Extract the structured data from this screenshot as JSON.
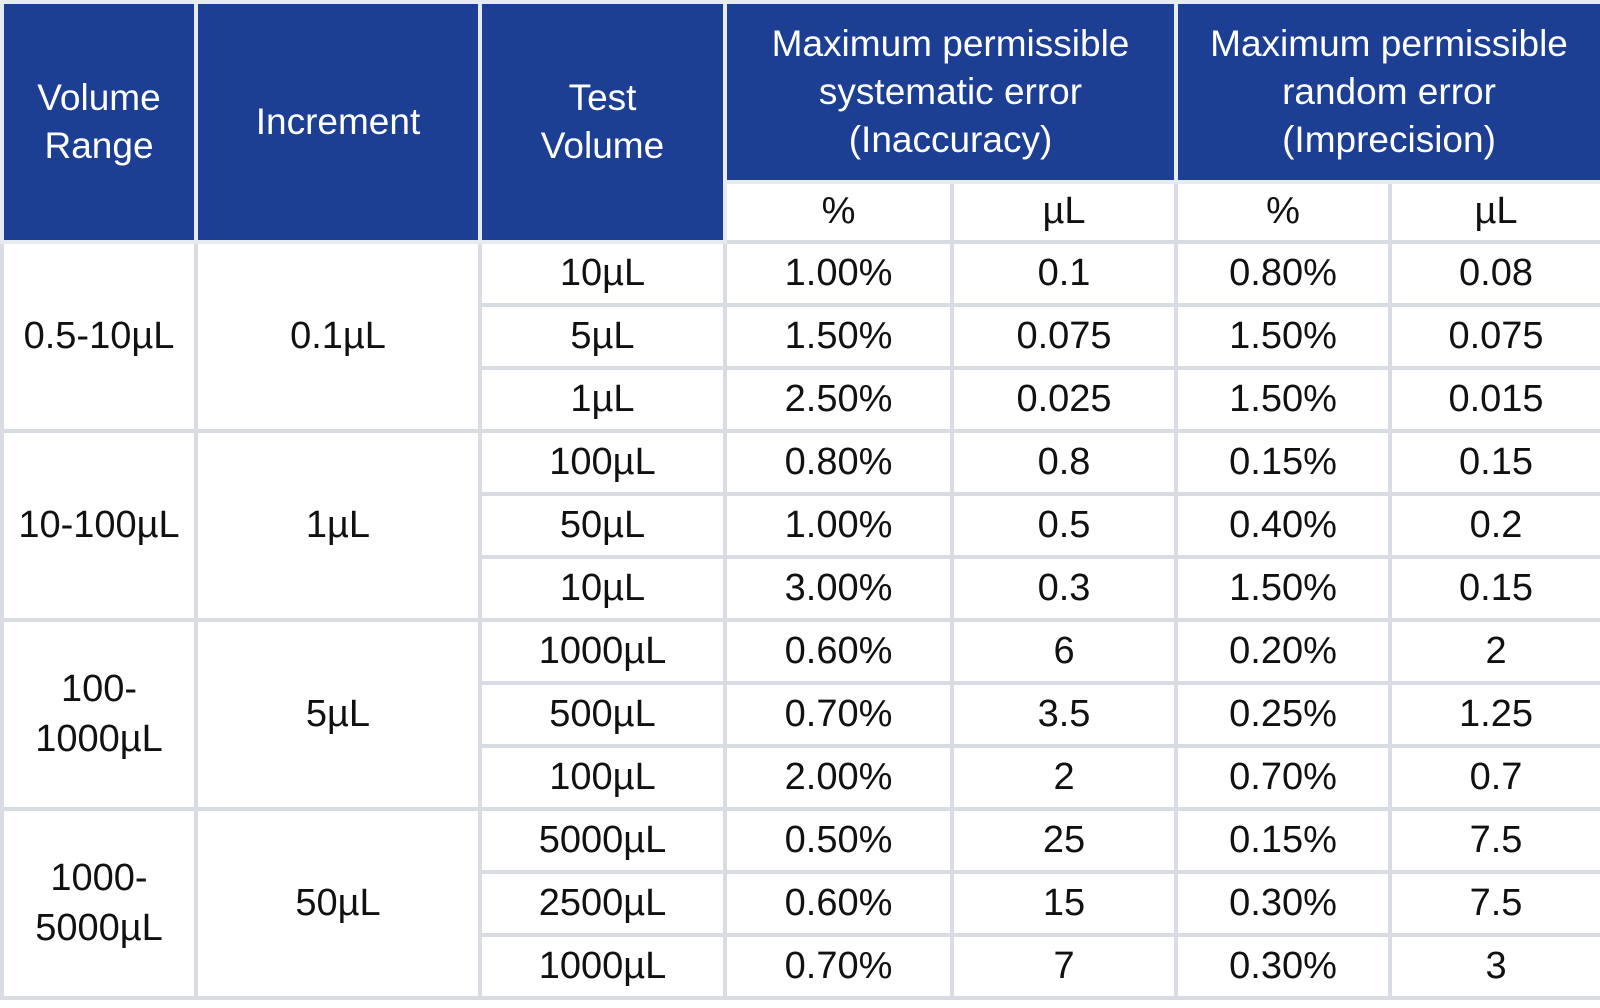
{
  "table": {
    "header": {
      "volume_range": "Volume Range",
      "increment": "Increment",
      "test_volume": "Test Volume",
      "systematic": "Maximum permissible systematic error (Inaccuracy)",
      "random": "Maximum permissible random error (Imprecision)",
      "sub": [
        "%",
        "µL",
        "%",
        "µL"
      ]
    },
    "groups": [
      {
        "range": "0.5-10µL",
        "increment": "0.1µL",
        "rows": [
          [
            "10µL",
            "1.00%",
            "0.1",
            "0.80%",
            "0.08"
          ],
          [
            "5µL",
            "1.50%",
            "0.075",
            "1.50%",
            "0.075"
          ],
          [
            "1µL",
            "2.50%",
            "0.025",
            "1.50%",
            "0.015"
          ]
        ]
      },
      {
        "range": "10-100µL",
        "increment": "1µL",
        "rows": [
          [
            "100µL",
            "0.80%",
            "0.8",
            "0.15%",
            "0.15"
          ],
          [
            "50µL",
            "1.00%",
            "0.5",
            "0.40%",
            "0.2"
          ],
          [
            "10µL",
            "3.00%",
            "0.3",
            "1.50%",
            "0.15"
          ]
        ]
      },
      {
        "range": "100-1000µL",
        "increment": "5µL",
        "rows": [
          [
            "1000µL",
            "0.60%",
            "6",
            "0.20%",
            "2"
          ],
          [
            "500µL",
            "0.70%",
            "3.5",
            "0.25%",
            "1.25"
          ],
          [
            "100µL",
            "2.00%",
            "2",
            "0.70%",
            "0.7"
          ]
        ]
      },
      {
        "range": "1000-5000µL",
        "increment": "50µL",
        "rows": [
          [
            "5000µL",
            "0.50%",
            "25",
            "0.15%",
            "7.5"
          ],
          [
            "2500µL",
            "0.60%",
            "15",
            "0.30%",
            "7.5"
          ],
          [
            "1000µL",
            "0.70%",
            "7",
            "0.30%",
            "3"
          ]
        ]
      }
    ]
  }
}
